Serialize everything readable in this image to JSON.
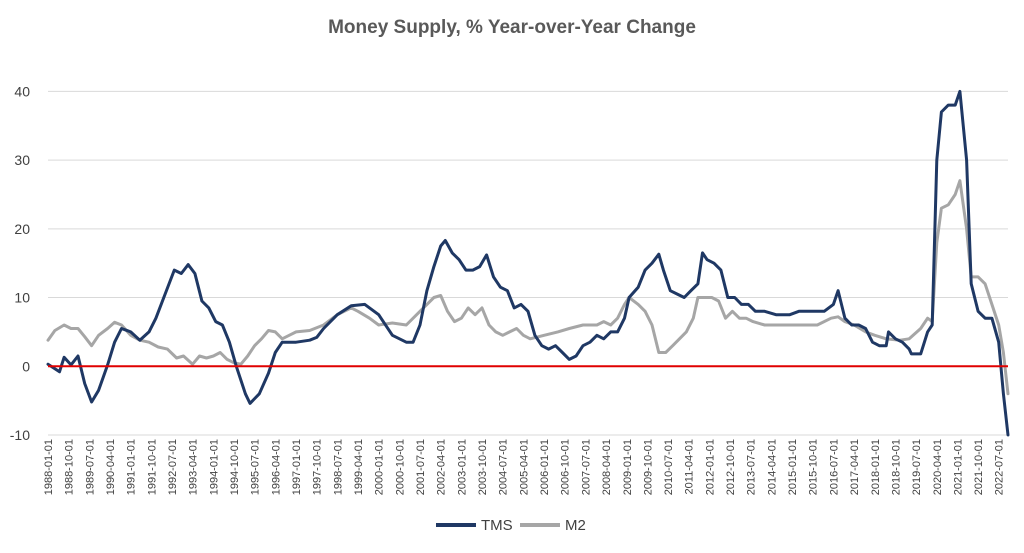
{
  "chart_data": {
    "type": "line",
    "title": "Money Supply, % Year-over-Year Change",
    "xlabel": "",
    "ylabel": "",
    "ylim": [
      -10,
      45
    ],
    "yticks": [
      -10,
      0,
      10,
      20,
      30,
      40
    ],
    "grid": "horizontal",
    "legend": "bottom-center",
    "reference_line": {
      "y": 0,
      "color": "#e00000"
    },
    "x_tick_labels": [
      "1988-01-01",
      "1988-10-01",
      "1989-07-01",
      "1990-04-01",
      "1991-01-01",
      "1991-10-01",
      "1992-07-01",
      "1993-04-01",
      "1994-01-01",
      "1994-10-01",
      "1995-07-01",
      "1996-04-01",
      "1997-01-01",
      "1997-10-01",
      "1998-07-01",
      "1999-04-01",
      "2000-01-01",
      "2000-10-01",
      "2001-07-01",
      "2002-04-01",
      "2003-01-01",
      "2003-10-01",
      "2004-07-01",
      "2005-04-01",
      "2006-01-01",
      "2006-10-01",
      "2007-07-01",
      "2008-04-01",
      "2009-01-01",
      "2009-10-01",
      "2010-07-01",
      "2011-04-01",
      "2012-01-01",
      "2012-10-01",
      "2013-07-01",
      "2014-04-01",
      "2015-01-01",
      "2015-10-01",
      "2016-07-01",
      "2017-04-01",
      "2018-01-01",
      "2018-10-01",
      "2019-07-01",
      "2020-04-01",
      "2021-01-01",
      "2021-10-01",
      "2022-07-01"
    ],
    "x_range": [
      "1988-01-01",
      "2022-11-01"
    ],
    "series": [
      {
        "name": "TMS",
        "color": "#1f3864",
        "points": [
          [
            "1988-01-01",
            0.3
          ],
          [
            "1988-06-01",
            -0.8
          ],
          [
            "1988-08-01",
            1.3
          ],
          [
            "1988-11-01",
            0.2
          ],
          [
            "1989-02-01",
            1.5
          ],
          [
            "1989-05-01",
            -2.5
          ],
          [
            "1989-08-01",
            -5.2
          ],
          [
            "1989-11-01",
            -3.5
          ],
          [
            "1990-03-01",
            0.2
          ],
          [
            "1990-06-01",
            3.5
          ],
          [
            "1990-09-01",
            5.5
          ],
          [
            "1991-01-01",
            5
          ],
          [
            "1991-05-01",
            3.8
          ],
          [
            "1991-09-01",
            5
          ],
          [
            "1991-12-01",
            7
          ],
          [
            "1992-04-01",
            10.5
          ],
          [
            "1992-08-01",
            14
          ],
          [
            "1992-11-01",
            13.5
          ],
          [
            "1993-02-01",
            14.8
          ],
          [
            "1993-05-01",
            13.5
          ],
          [
            "1993-08-01",
            9.5
          ],
          [
            "1993-11-01",
            8.5
          ],
          [
            "1994-02-01",
            6.5
          ],
          [
            "1994-05-01",
            6
          ],
          [
            "1994-08-01",
            3.5
          ],
          [
            "1994-11-01",
            0
          ],
          [
            "1995-03-01",
            -4
          ],
          [
            "1995-05-01",
            -5.4
          ],
          [
            "1995-09-01",
            -4
          ],
          [
            "1996-01-01",
            -1
          ],
          [
            "1996-04-01",
            2
          ],
          [
            "1996-07-01",
            3.5
          ],
          [
            "1997-01-01",
            3.5
          ],
          [
            "1997-07-01",
            3.8
          ],
          [
            "1997-10-01",
            4.2
          ],
          [
            "1998-01-01",
            5.5
          ],
          [
            "1998-07-01",
            7.5
          ],
          [
            "1999-01-01",
            8.8
          ],
          [
            "1999-07-01",
            9
          ],
          [
            "2000-01-01",
            7.5
          ],
          [
            "2000-07-01",
            4.5
          ],
          [
            "2001-01-01",
            3.5
          ],
          [
            "2001-04-01",
            3.5
          ],
          [
            "2001-07-01",
            6
          ],
          [
            "2001-10-01",
            11
          ],
          [
            "2002-01-01",
            14.5
          ],
          [
            "2002-04-01",
            17.5
          ],
          [
            "2002-06-01",
            18.3
          ],
          [
            "2002-09-01",
            16.5
          ],
          [
            "2002-12-01",
            15.5
          ],
          [
            "2003-03-01",
            14
          ],
          [
            "2003-06-01",
            14
          ],
          [
            "2003-09-01",
            14.5
          ],
          [
            "2003-12-01",
            16.2
          ],
          [
            "2004-03-01",
            13
          ],
          [
            "2004-06-01",
            11.5
          ],
          [
            "2004-09-01",
            11
          ],
          [
            "2004-12-01",
            8.5
          ],
          [
            "2005-03-01",
            9
          ],
          [
            "2005-06-01",
            8
          ],
          [
            "2005-09-01",
            4.5
          ],
          [
            "2005-12-01",
            3
          ],
          [
            "2006-03-01",
            2.5
          ],
          [
            "2006-06-01",
            3
          ],
          [
            "2006-09-01",
            2
          ],
          [
            "2006-12-01",
            1
          ],
          [
            "2007-03-01",
            1.5
          ],
          [
            "2007-06-01",
            3
          ],
          [
            "2007-09-01",
            3.5
          ],
          [
            "2007-12-01",
            4.5
          ],
          [
            "2008-03-01",
            4
          ],
          [
            "2008-06-01",
            5
          ],
          [
            "2008-09-01",
            5
          ],
          [
            "2008-12-01",
            7
          ],
          [
            "2009-02-01",
            10
          ],
          [
            "2009-06-01",
            11.5
          ],
          [
            "2009-09-01",
            14
          ],
          [
            "2009-12-01",
            15
          ],
          [
            "2010-03-01",
            16.3
          ],
          [
            "2010-05-01",
            14
          ],
          [
            "2010-08-01",
            11
          ],
          [
            "2010-11-01",
            10.5
          ],
          [
            "2011-02-01",
            10
          ],
          [
            "2011-05-01",
            11
          ],
          [
            "2011-08-01",
            12
          ],
          [
            "2011-10-01",
            16.5
          ],
          [
            "2011-12-01",
            15.5
          ],
          [
            "2012-03-01",
            15
          ],
          [
            "2012-06-01",
            14
          ],
          [
            "2012-09-01",
            10
          ],
          [
            "2012-12-01",
            10
          ],
          [
            "2013-03-01",
            9
          ],
          [
            "2013-06-01",
            9
          ],
          [
            "2013-09-01",
            8
          ],
          [
            "2014-01-01",
            8
          ],
          [
            "2014-06-01",
            7.5
          ],
          [
            "2014-12-01",
            7.5
          ],
          [
            "2015-04-01",
            8
          ],
          [
            "2015-10-01",
            8
          ],
          [
            "2016-03-01",
            8
          ],
          [
            "2016-07-01",
            9
          ],
          [
            "2016-09-01",
            11
          ],
          [
            "2016-12-01",
            7
          ],
          [
            "2017-03-01",
            6
          ],
          [
            "2017-06-01",
            6
          ],
          [
            "2017-09-01",
            5.5
          ],
          [
            "2017-12-01",
            3.5
          ],
          [
            "2018-03-01",
            3
          ],
          [
            "2018-06-01",
            3
          ],
          [
            "2018-07-01",
            5
          ],
          [
            "2018-10-01",
            4
          ],
          [
            "2019-01-01",
            3.5
          ],
          [
            "2019-04-01",
            2.5
          ],
          [
            "2019-05-01",
            1.8
          ],
          [
            "2019-09-01",
            1.8
          ],
          [
            "2019-12-01",
            5
          ],
          [
            "2020-02-01",
            6
          ],
          [
            "2020-04-01",
            30
          ],
          [
            "2020-06-01",
            37
          ],
          [
            "2020-09-01",
            38
          ],
          [
            "2020-12-01",
            38
          ],
          [
            "2021-02-01",
            40
          ],
          [
            "2021-05-01",
            30
          ],
          [
            "2021-07-01",
            12
          ],
          [
            "2021-10-01",
            8
          ],
          [
            "2022-01-01",
            7
          ],
          [
            "2022-04-01",
            7
          ],
          [
            "2022-07-01",
            3.5
          ],
          [
            "2022-09-01",
            -4
          ],
          [
            "2022-11-01",
            -10
          ]
        ]
      },
      {
        "name": "M2",
        "color": "#a6a6a6",
        "points": [
          [
            "1988-01-01",
            3.8
          ],
          [
            "1988-04-01",
            5.2
          ],
          [
            "1988-08-01",
            6
          ],
          [
            "1988-11-01",
            5.5
          ],
          [
            "1989-02-01",
            5.5
          ],
          [
            "1989-05-01",
            4.3
          ],
          [
            "1989-08-01",
            3
          ],
          [
            "1989-11-01",
            4.5
          ],
          [
            "1990-03-01",
            5.5
          ],
          [
            "1990-06-01",
            6.4
          ],
          [
            "1990-09-01",
            6
          ],
          [
            "1991-01-01",
            4.5
          ],
          [
            "1991-05-01",
            3.8
          ],
          [
            "1991-09-01",
            3.5
          ],
          [
            "1992-01-01",
            2.8
          ],
          [
            "1992-05-01",
            2.5
          ],
          [
            "1992-09-01",
            1.2
          ],
          [
            "1992-12-01",
            1.5
          ],
          [
            "1993-04-01",
            0.3
          ],
          [
            "1993-07-01",
            1.5
          ],
          [
            "1993-10-01",
            1.2
          ],
          [
            "1994-01-01",
            1.5
          ],
          [
            "1994-04-01",
            2
          ],
          [
            "1994-07-01",
            1
          ],
          [
            "1994-10-01",
            0.5
          ],
          [
            "1995-01-01",
            0.3
          ],
          [
            "1995-04-01",
            1.5
          ],
          [
            "1995-07-01",
            3
          ],
          [
            "1995-10-01",
            4
          ],
          [
            "1996-01-01",
            5.2
          ],
          [
            "1996-04-01",
            5
          ],
          [
            "1996-07-01",
            4
          ],
          [
            "1996-10-01",
            4.5
          ],
          [
            "1997-01-01",
            5
          ],
          [
            "1997-07-01",
            5.2
          ],
          [
            "1998-01-01",
            6
          ],
          [
            "1998-07-01",
            7.5
          ],
          [
            "1999-01-01",
            8.5
          ],
          [
            "1999-04-01",
            8
          ],
          [
            "1999-09-01",
            7
          ],
          [
            "2000-01-01",
            6
          ],
          [
            "2000-07-01",
            6.3
          ],
          [
            "2001-01-01",
            6
          ],
          [
            "2001-07-01",
            8
          ],
          [
            "2002-01-01",
            10
          ],
          [
            "2002-04-01",
            10.3
          ],
          [
            "2002-07-01",
            8
          ],
          [
            "2002-10-01",
            6.5
          ],
          [
            "2003-01-01",
            7
          ],
          [
            "2003-04-01",
            8.5
          ],
          [
            "2003-07-01",
            7.5
          ],
          [
            "2003-10-01",
            8.5
          ],
          [
            "2004-01-01",
            6
          ],
          [
            "2004-04-01",
            5
          ],
          [
            "2004-07-01",
            4.5
          ],
          [
            "2004-10-01",
            5
          ],
          [
            "2005-01-01",
            5.5
          ],
          [
            "2005-04-01",
            4.5
          ],
          [
            "2005-07-01",
            4
          ],
          [
            "2006-01-01",
            4.5
          ],
          [
            "2006-07-01",
            5
          ],
          [
            "2006-12-01",
            5.5
          ],
          [
            "2007-06-01",
            6
          ],
          [
            "2007-12-01",
            6
          ],
          [
            "2008-03-01",
            6.5
          ],
          [
            "2008-06-01",
            6
          ],
          [
            "2008-09-01",
            7
          ],
          [
            "2008-12-01",
            9
          ],
          [
            "2009-02-01",
            10
          ],
          [
            "2009-06-01",
            9
          ],
          [
            "2009-09-01",
            8
          ],
          [
            "2009-12-01",
            6
          ],
          [
            "2010-03-01",
            2
          ],
          [
            "2010-06-01",
            2
          ],
          [
            "2010-09-01",
            3
          ],
          [
            "2010-12-01",
            4
          ],
          [
            "2011-03-01",
            5
          ],
          [
            "2011-06-01",
            7
          ],
          [
            "2011-08-01",
            10
          ],
          [
            "2011-11-01",
            10
          ],
          [
            "2012-02-01",
            10
          ],
          [
            "2012-05-01",
            9.5
          ],
          [
            "2012-08-01",
            7
          ],
          [
            "2012-11-01",
            8
          ],
          [
            "2013-02-01",
            7
          ],
          [
            "2013-05-01",
            7
          ],
          [
            "2013-08-01",
            6.5
          ],
          [
            "2014-01-01",
            6
          ],
          [
            "2014-06-01",
            6
          ],
          [
            "2014-12-01",
            6
          ],
          [
            "2015-06-01",
            6
          ],
          [
            "2015-12-01",
            6
          ],
          [
            "2016-06-01",
            7
          ],
          [
            "2016-09-01",
            7.2
          ],
          [
            "2016-12-01",
            6.5
          ],
          [
            "2017-04-01",
            6
          ],
          [
            "2017-09-01",
            5
          ],
          [
            "2018-01-01",
            4.5
          ],
          [
            "2018-06-01",
            4
          ],
          [
            "2018-12-01",
            3.8
          ],
          [
            "2019-04-01",
            4
          ],
          [
            "2019-09-01",
            5.5
          ],
          [
            "2019-12-01",
            7
          ],
          [
            "2020-02-01",
            6.5
          ],
          [
            "2020-04-01",
            18
          ],
          [
            "2020-06-01",
            23
          ],
          [
            "2020-09-01",
            23.5
          ],
          [
            "2020-12-01",
            25
          ],
          [
            "2021-02-01",
            27
          ],
          [
            "2021-05-01",
            20
          ],
          [
            "2021-07-01",
            13
          ],
          [
            "2021-10-01",
            13
          ],
          [
            "2022-01-01",
            12
          ],
          [
            "2022-04-01",
            9
          ],
          [
            "2022-07-01",
            6
          ],
          [
            "2022-09-01",
            2
          ],
          [
            "2022-11-01",
            -4
          ]
        ]
      }
    ]
  }
}
